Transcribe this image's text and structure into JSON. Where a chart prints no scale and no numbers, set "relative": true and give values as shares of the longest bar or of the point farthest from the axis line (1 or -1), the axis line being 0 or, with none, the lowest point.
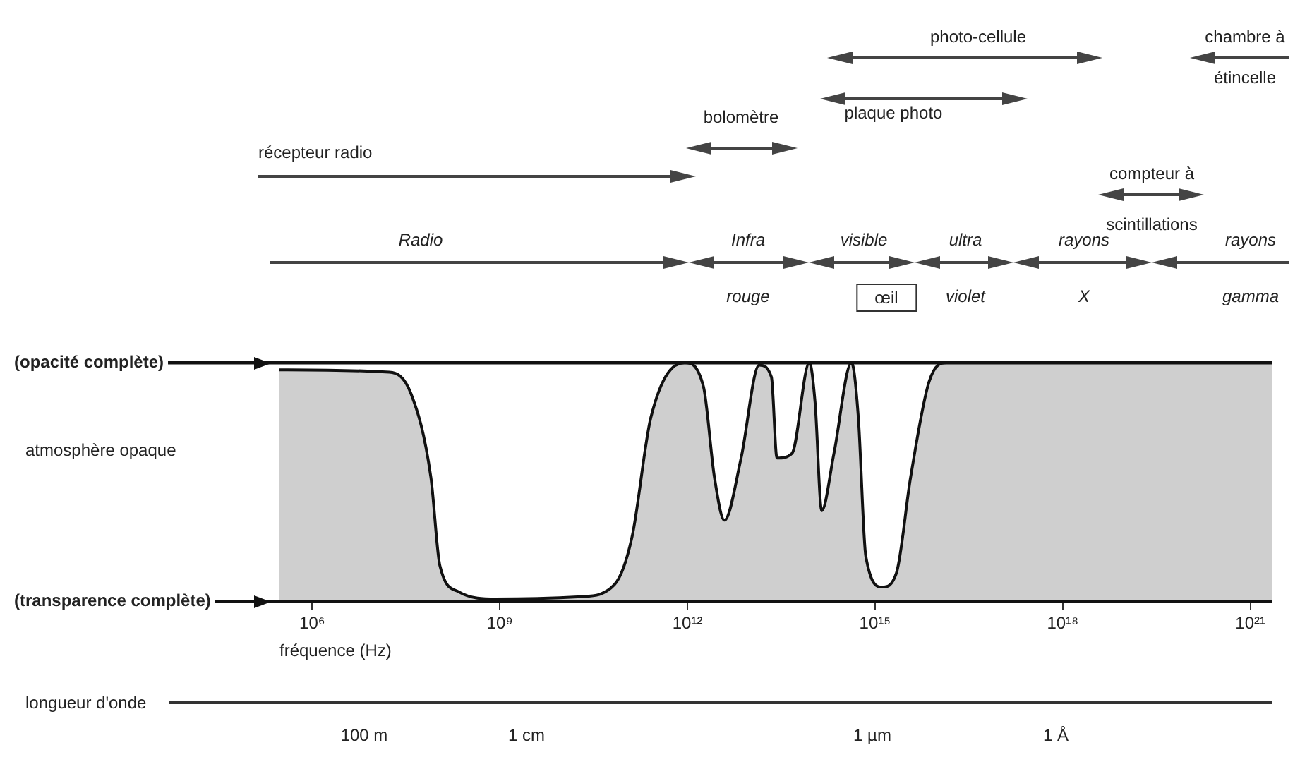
{
  "chart_data": {
    "type": "area",
    "relative": true,
    "xlabel": "fréquence (Hz)",
    "log": "x",
    "xlim": [
      300000.0,
      2.2e+21
    ],
    "xticks": [
      {
        "value": 1000000.0,
        "label": "10⁶"
      },
      {
        "value": 1000000000.0,
        "label": "10⁹"
      },
      {
        "value": 1000000000000.0,
        "label": "10¹²"
      },
      {
        "value": 1000000000000000.0,
        "label": "10¹⁵"
      },
      {
        "value": 1e+18,
        "label": "10¹⁸"
      },
      {
        "value": 1e+21,
        "label": "10²¹"
      }
    ],
    "x": [
      300000.0,
      17000000.0,
      38000000.0,
      79000000.0,
      110000000.0,
      220000000.0,
      870000000.0,
      20000000000.0,
      68000000000.0,
      130000000000.0,
      260000000000.0,
      900000000000.0,
      1800000000000.0,
      2700000000000.0,
      3900000000000.0,
      7200000000000.0,
      14000000000000.0,
      22000000000000.0,
      27000000000000.0,
      47000000000000.0,
      89000000000000.0,
      110000000000000.0,
      140000000000000.0,
      220000000000000.0,
      420000000000000.0,
      540000000000000.0,
      710000000000000.0,
      1300000000000000.0,
      2200000000000000.0,
      3700000000000000.0,
      7300000000000000.0,
      1.4e+16,
      2.2e+21
    ],
    "series": [
      {
        "color": "#111111",
        "values": [
          0.97,
          0.96,
          0.87,
          0.52,
          0.15,
          0.04,
          0.01,
          0.02,
          0.07,
          0.27,
          0.77,
          1.0,
          0.9,
          0.52,
          0.34,
          0.6,
          0.99,
          0.94,
          0.6,
          0.62,
          1.0,
          0.83,
          0.38,
          0.62,
          1.0,
          0.77,
          0.19,
          0.06,
          0.12,
          0.52,
          0.92,
          1.0,
          1.0
        ]
      }
    ],
    "ref_lines": [
      {
        "axis": "y",
        "value": 1,
        "label": "(opacité complète)"
      },
      {
        "axis": "y",
        "value": 0,
        "label": "(transparence complète)"
      }
    ],
    "grid": false,
    "legend": false,
    "annotations": [
      "récepteur radio",
      "bolomètre",
      "plaque photo",
      "photo-cellule",
      "chambre à étincelle",
      "compteur à scintillations",
      "Radio",
      "Infra rouge",
      "visible",
      "ultra violet",
      "rayons X",
      "rayons gamma",
      "œil",
      "atmosphère opaque",
      "longueur d'onde",
      "100 m",
      "1 cm",
      "1 µm",
      "1 Å"
    ]
  }
}
